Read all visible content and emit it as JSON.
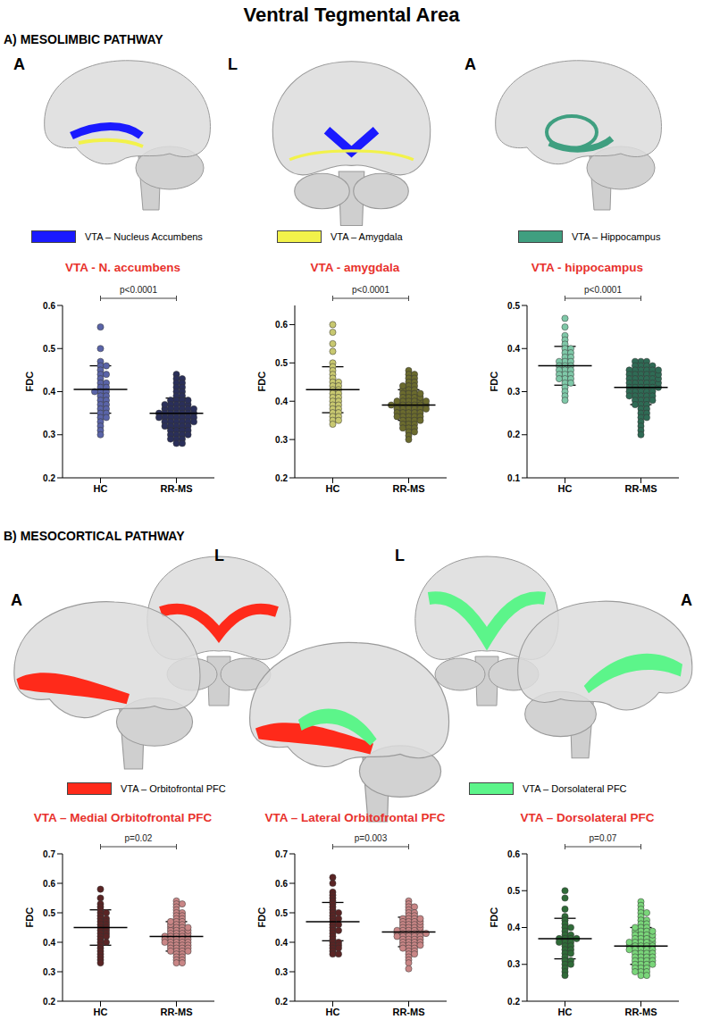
{
  "figure": {
    "title": "Ventral Tegmental Area",
    "sections": [
      {
        "heading": "A) MESOLIMBIC PATHWAY",
        "view_labels": [
          "A",
          "L",
          "A"
        ],
        "legend": [
          {
            "label": "VTA – Nucleus Accumbens",
            "color": "#1a1aff"
          },
          {
            "label": "VTA – Amygdala",
            "color": "#f2f24a"
          },
          {
            "label": "VTA – Hippocampus",
            "color": "#3f9f80"
          }
        ]
      },
      {
        "heading": "B) MESOCORTICAL PATHWAY",
        "view_labels": [
          "A",
          "L",
          "L",
          "A"
        ],
        "legend": [
          {
            "label": "VTA – Orbitofrontal PFC",
            "color": "#ff2a1a"
          },
          {
            "label": "VTA – Dorsolateral PFC",
            "color": "#5cf58a"
          }
        ]
      }
    ]
  },
  "chart_data": [
    {
      "type": "scatter",
      "title": "VTA - N. accumbens",
      "y_label": "FDC",
      "annotation": "p<0.0001",
      "ylim": [
        0.2,
        0.6
      ],
      "yticks": [
        0.2,
        0.3,
        0.4,
        0.5,
        0.6
      ],
      "grid": false,
      "series": [
        {
          "name": "HC",
          "color": "#5a64a8",
          "mean": 0.405,
          "sd": 0.055,
          "values": [
            0.55,
            0.5,
            0.47,
            0.46,
            0.46,
            0.45,
            0.44,
            0.44,
            0.43,
            0.42,
            0.42,
            0.41,
            0.41,
            0.4,
            0.4,
            0.4,
            0.39,
            0.39,
            0.38,
            0.38,
            0.37,
            0.37,
            0.36,
            0.36,
            0.35,
            0.35,
            0.34,
            0.34,
            0.33,
            0.32,
            0.31,
            0.3
          ]
        },
        {
          "name": "RR-MS",
          "color": "#2a2f5a",
          "mean": 0.35,
          "sd": 0.035,
          "values": [
            0.44,
            0.43,
            0.43,
            0.42,
            0.42,
            0.41,
            0.41,
            0.4,
            0.4,
            0.39,
            0.39,
            0.38,
            0.38,
            0.38,
            0.37,
            0.37,
            0.37,
            0.37,
            0.36,
            0.36,
            0.36,
            0.36,
            0.36,
            0.35,
            0.35,
            0.35,
            0.35,
            0.35,
            0.35,
            0.34,
            0.34,
            0.34,
            0.34,
            0.34,
            0.34,
            0.33,
            0.33,
            0.33,
            0.33,
            0.33,
            0.32,
            0.32,
            0.32,
            0.32,
            0.31,
            0.31,
            0.31,
            0.31,
            0.3,
            0.3,
            0.3,
            0.3,
            0.29,
            0.29,
            0.29,
            0.28,
            0.28,
            0.36,
            0.35,
            0.34,
            0.33,
            0.32,
            0.37,
            0.38
          ]
        }
      ]
    },
    {
      "type": "scatter",
      "title": "VTA - amygdala",
      "y_label": "FDC",
      "annotation": "p<0.0001",
      "ylim": [
        0.2,
        0.65
      ],
      "yticks": [
        0.2,
        0.3,
        0.4,
        0.5,
        0.6
      ],
      "grid": false,
      "series": [
        {
          "name": "HC",
          "color": "#c8c870",
          "mean": 0.43,
          "sd": 0.06,
          "values": [
            0.6,
            0.58,
            0.55,
            0.53,
            0.5,
            0.49,
            0.48,
            0.47,
            0.46,
            0.45,
            0.45,
            0.44,
            0.44,
            0.43,
            0.43,
            0.42,
            0.42,
            0.41,
            0.41,
            0.4,
            0.4,
            0.39,
            0.39,
            0.38,
            0.38,
            0.37,
            0.37,
            0.36,
            0.36,
            0.35,
            0.35,
            0.34
          ]
        },
        {
          "name": "RR-MS",
          "color": "#6b6b2e",
          "mean": 0.39,
          "sd": 0.04,
          "values": [
            0.48,
            0.47,
            0.47,
            0.46,
            0.46,
            0.45,
            0.45,
            0.44,
            0.44,
            0.43,
            0.43,
            0.43,
            0.42,
            0.42,
            0.42,
            0.41,
            0.41,
            0.41,
            0.4,
            0.4,
            0.4,
            0.4,
            0.39,
            0.39,
            0.39,
            0.39,
            0.39,
            0.38,
            0.38,
            0.38,
            0.38,
            0.38,
            0.37,
            0.37,
            0.37,
            0.37,
            0.36,
            0.36,
            0.36,
            0.36,
            0.35,
            0.35,
            0.35,
            0.34,
            0.34,
            0.34,
            0.33,
            0.33,
            0.32,
            0.32,
            0.31,
            0.3,
            0.39,
            0.4,
            0.38,
            0.37,
            0.41,
            0.36,
            0.35,
            0.42,
            0.44,
            0.33,
            0.39,
            0.4
          ]
        }
      ]
    },
    {
      "type": "scatter",
      "title": "VTA - hippocampus",
      "y_label": "FDC",
      "annotation": "p<0.0001",
      "ylim": [
        0.1,
        0.5
      ],
      "yticks": [
        0.1,
        0.2,
        0.3,
        0.4,
        0.5
      ],
      "grid": false,
      "series": [
        {
          "name": "HC",
          "color": "#7fc8a8",
          "mean": 0.36,
          "sd": 0.045,
          "values": [
            0.47,
            0.45,
            0.43,
            0.42,
            0.41,
            0.4,
            0.4,
            0.39,
            0.39,
            0.38,
            0.38,
            0.37,
            0.37,
            0.37,
            0.36,
            0.36,
            0.36,
            0.35,
            0.35,
            0.35,
            0.34,
            0.34,
            0.34,
            0.33,
            0.33,
            0.33,
            0.32,
            0.32,
            0.31,
            0.3,
            0.29,
            0.28
          ]
        },
        {
          "name": "RR-MS",
          "color": "#2f6b55",
          "mean": 0.31,
          "sd": 0.04,
          "values": [
            0.37,
            0.37,
            0.37,
            0.36,
            0.36,
            0.36,
            0.36,
            0.35,
            0.35,
            0.35,
            0.35,
            0.35,
            0.34,
            0.34,
            0.34,
            0.34,
            0.34,
            0.33,
            0.33,
            0.33,
            0.33,
            0.33,
            0.32,
            0.32,
            0.32,
            0.32,
            0.32,
            0.31,
            0.31,
            0.31,
            0.31,
            0.31,
            0.3,
            0.3,
            0.3,
            0.3,
            0.29,
            0.29,
            0.29,
            0.29,
            0.28,
            0.28,
            0.28,
            0.27,
            0.27,
            0.27,
            0.26,
            0.26,
            0.25,
            0.25,
            0.24,
            0.24,
            0.23,
            0.22,
            0.21,
            0.2,
            0.3,
            0.31,
            0.32,
            0.33,
            0.34,
            0.29,
            0.28,
            0.35
          ]
        }
      ]
    },
    {
      "type": "scatter",
      "title": "VTA – Medial Orbitofrontal PFC",
      "y_label": "FDC",
      "annotation": "p=0.02",
      "ylim": [
        0.2,
        0.7
      ],
      "yticks": [
        0.2,
        0.3,
        0.4,
        0.5,
        0.6,
        0.7
      ],
      "grid": false,
      "series": [
        {
          "name": "HC",
          "color": "#5a2424",
          "mean": 0.45,
          "sd": 0.06,
          "values": [
            0.58,
            0.55,
            0.53,
            0.52,
            0.51,
            0.5,
            0.5,
            0.49,
            0.48,
            0.48,
            0.47,
            0.47,
            0.46,
            0.46,
            0.45,
            0.45,
            0.44,
            0.44,
            0.43,
            0.43,
            0.42,
            0.42,
            0.41,
            0.4,
            0.4,
            0.39,
            0.38,
            0.37,
            0.36,
            0.35,
            0.34,
            0.33
          ]
        },
        {
          "name": "RR-MS",
          "color": "#c98686",
          "mean": 0.42,
          "sd": 0.05,
          "values": [
            0.54,
            0.53,
            0.53,
            0.52,
            0.51,
            0.5,
            0.5,
            0.49,
            0.49,
            0.48,
            0.48,
            0.47,
            0.47,
            0.46,
            0.46,
            0.45,
            0.45,
            0.45,
            0.44,
            0.44,
            0.44,
            0.43,
            0.43,
            0.43,
            0.42,
            0.42,
            0.42,
            0.42,
            0.41,
            0.41,
            0.41,
            0.41,
            0.4,
            0.4,
            0.4,
            0.4,
            0.39,
            0.39,
            0.39,
            0.38,
            0.38,
            0.38,
            0.37,
            0.37,
            0.37,
            0.36,
            0.36,
            0.35,
            0.35,
            0.34,
            0.34,
            0.33,
            0.33,
            0.42,
            0.43,
            0.41,
            0.4,
            0.39,
            0.44,
            0.45,
            0.46,
            0.38,
            0.37,
            0.47
          ]
        }
      ]
    },
    {
      "type": "scatter",
      "title": "VTA – Lateral Orbitofrontal PFC",
      "y_label": "FDC",
      "annotation": "p=0.003",
      "ylim": [
        0.2,
        0.7
      ],
      "yticks": [
        0.2,
        0.3,
        0.4,
        0.5,
        0.6,
        0.7
      ],
      "grid": false,
      "series": [
        {
          "name": "HC",
          "color": "#5a2424",
          "mean": 0.47,
          "sd": 0.065,
          "values": [
            0.62,
            0.6,
            0.57,
            0.56,
            0.55,
            0.54,
            0.53,
            0.52,
            0.51,
            0.5,
            0.5,
            0.49,
            0.48,
            0.48,
            0.47,
            0.46,
            0.46,
            0.45,
            0.44,
            0.44,
            0.43,
            0.42,
            0.41,
            0.4,
            0.4,
            0.39,
            0.39,
            0.38,
            0.38,
            0.37,
            0.36,
            0.36
          ]
        },
        {
          "name": "RR-MS",
          "color": "#c98686",
          "mean": 0.435,
          "sd": 0.05,
          "values": [
            0.54,
            0.53,
            0.52,
            0.52,
            0.51,
            0.5,
            0.5,
            0.49,
            0.49,
            0.48,
            0.48,
            0.48,
            0.47,
            0.47,
            0.47,
            0.46,
            0.46,
            0.46,
            0.45,
            0.45,
            0.45,
            0.44,
            0.44,
            0.44,
            0.44,
            0.43,
            0.43,
            0.43,
            0.43,
            0.42,
            0.42,
            0.42,
            0.42,
            0.41,
            0.41,
            0.41,
            0.4,
            0.4,
            0.4,
            0.39,
            0.39,
            0.39,
            0.38,
            0.38,
            0.37,
            0.37,
            0.36,
            0.36,
            0.35,
            0.34,
            0.33,
            0.31,
            0.43,
            0.44,
            0.42,
            0.41,
            0.45,
            0.46,
            0.4,
            0.39,
            0.47,
            0.48,
            0.38,
            0.43
          ]
        }
      ]
    },
    {
      "type": "scatter",
      "title": "VTA – Dorsolateral PFC",
      "y_label": "FDC",
      "annotation": "p=0.07",
      "ylim": [
        0.2,
        0.6
      ],
      "yticks": [
        0.2,
        0.3,
        0.4,
        0.5,
        0.6
      ],
      "grid": false,
      "series": [
        {
          "name": "HC",
          "color": "#2f6b38",
          "mean": 0.37,
          "sd": 0.055,
          "values": [
            0.5,
            0.48,
            0.45,
            0.43,
            0.42,
            0.41,
            0.4,
            0.4,
            0.39,
            0.38,
            0.38,
            0.37,
            0.37,
            0.37,
            0.37,
            0.36,
            0.36,
            0.36,
            0.35,
            0.35,
            0.34,
            0.34,
            0.33,
            0.33,
            0.32,
            0.31,
            0.31,
            0.3,
            0.3,
            0.29,
            0.28,
            0.27
          ]
        },
        {
          "name": "RR-MS",
          "color": "#7ad67a",
          "mean": 0.35,
          "sd": 0.05,
          "values": [
            0.47,
            0.46,
            0.45,
            0.44,
            0.44,
            0.43,
            0.42,
            0.42,
            0.41,
            0.41,
            0.4,
            0.4,
            0.39,
            0.39,
            0.39,
            0.38,
            0.38,
            0.38,
            0.37,
            0.37,
            0.37,
            0.36,
            0.36,
            0.36,
            0.36,
            0.35,
            0.35,
            0.35,
            0.35,
            0.34,
            0.34,
            0.34,
            0.34,
            0.33,
            0.33,
            0.33,
            0.32,
            0.32,
            0.32,
            0.31,
            0.31,
            0.31,
            0.3,
            0.3,
            0.3,
            0.29,
            0.29,
            0.29,
            0.28,
            0.28,
            0.28,
            0.27,
            0.27,
            0.35,
            0.36,
            0.34,
            0.33,
            0.37,
            0.38,
            0.32,
            0.31,
            0.3,
            0.39,
            0.4
          ]
        }
      ]
    }
  ]
}
